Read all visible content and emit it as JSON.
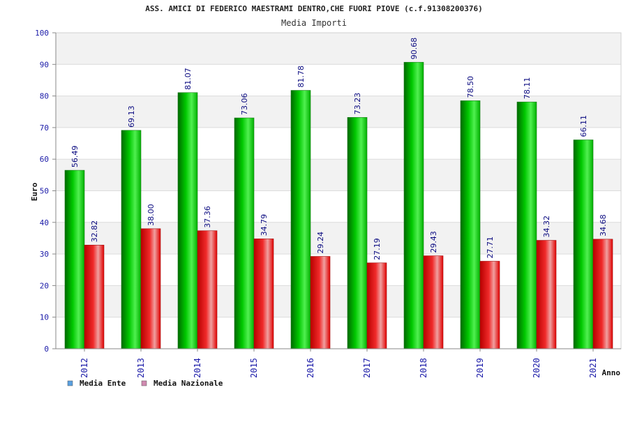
{
  "chart_data": {
    "type": "bar",
    "title": "ASS. AMICI DI FEDERICO MAESTRAMI DENTRO,CHE FUORI PIOVE (c.f.91308200376)",
    "subtitle": "Media Importi",
    "xlabel": "Anno",
    "ylabel": "Euro",
    "ylim": [
      0,
      100
    ],
    "yticks": [
      "0",
      "10",
      "20",
      "30",
      "40",
      "50",
      "60",
      "70",
      "80",
      "90",
      "100"
    ],
    "grid": true,
    "legend_position": "bottom-left",
    "categories": [
      "2012",
      "2013",
      "2014",
      "2015",
      "2016",
      "2017",
      "2018",
      "2019",
      "2020",
      "2021"
    ],
    "series": [
      {
        "name": "Media Ente",
        "color": "#00b000",
        "legend_color": "#5aa0e0",
        "values": [
          56.49,
          69.13,
          81.07,
          73.06,
          81.78,
          73.23,
          90.68,
          78.5,
          78.11,
          66.11
        ],
        "labels": [
          "56.49",
          "69.13",
          "81.07",
          "73.06",
          "81.78",
          "73.23",
          "90.68",
          "78.50",
          "78.11",
          "66.11"
        ]
      },
      {
        "name": "Media Nazionale",
        "color": "#e00000",
        "legend_color": "#d08ab0",
        "values": [
          32.82,
          38.0,
          37.36,
          34.79,
          29.24,
          27.19,
          29.43,
          27.71,
          34.32,
          34.68
        ],
        "labels": [
          "32.82",
          "38.00",
          "37.36",
          "34.79",
          "29.24",
          "27.19",
          "29.43",
          "27.71",
          "34.32",
          "34.68"
        ]
      }
    ]
  }
}
